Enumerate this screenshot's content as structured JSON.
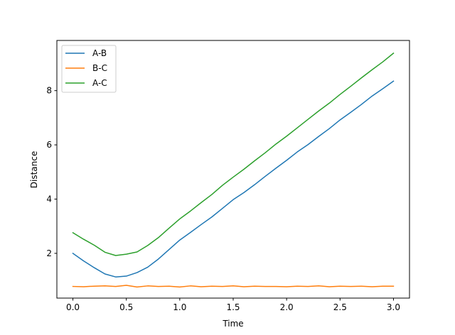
{
  "chart_data": {
    "type": "line",
    "title": "",
    "xlabel": "Time",
    "ylabel": "Distance",
    "xlim": [
      -0.15,
      3.15
    ],
    "ylim": [
      0.35,
      9.85
    ],
    "xticks": [
      0.0,
      0.5,
      1.0,
      1.5,
      2.0,
      2.5,
      3.0
    ],
    "xtick_labels": [
      "0.0",
      "0.5",
      "1.0",
      "1.5",
      "2.0",
      "2.5",
      "3.0"
    ],
    "yticks": [
      2,
      4,
      6,
      8
    ],
    "ytick_labels": [
      "2",
      "4",
      "6",
      "8"
    ],
    "grid": false,
    "legend": "upper-left",
    "colors": {
      "A-B": "#1f77b4",
      "B-C": "#ff7f0e",
      "A-C": "#2ca02c"
    },
    "x": [
      0.0,
      0.1,
      0.2,
      0.3,
      0.4,
      0.5,
      0.6,
      0.7,
      0.8,
      0.9,
      1.0,
      1.1,
      1.2,
      1.3,
      1.4,
      1.5,
      1.6,
      1.7,
      1.8,
      1.9,
      2.0,
      2.1,
      2.2,
      2.3,
      2.4,
      2.5,
      2.6,
      2.7,
      2.8,
      2.9,
      3.0
    ],
    "series": [
      {
        "name": "A-B",
        "values": [
          2.0,
          1.72,
          1.47,
          1.24,
          1.13,
          1.16,
          1.29,
          1.49,
          1.79,
          2.14,
          2.49,
          2.77,
          3.06,
          3.34,
          3.66,
          3.98,
          4.24,
          4.53,
          4.84,
          5.14,
          5.43,
          5.74,
          6.01,
          6.31,
          6.6,
          6.92,
          7.2,
          7.49,
          7.8,
          8.07,
          8.35
        ]
      },
      {
        "name": "B-C",
        "values": [
          0.78,
          0.77,
          0.79,
          0.8,
          0.78,
          0.82,
          0.76,
          0.8,
          0.78,
          0.79,
          0.76,
          0.8,
          0.77,
          0.79,
          0.78,
          0.8,
          0.77,
          0.79,
          0.78,
          0.78,
          0.77,
          0.79,
          0.78,
          0.8,
          0.77,
          0.79,
          0.78,
          0.79,
          0.77,
          0.79,
          0.79
        ]
      },
      {
        "name": "A-C",
        "values": [
          2.76,
          2.52,
          2.3,
          2.04,
          1.92,
          1.97,
          2.05,
          2.29,
          2.58,
          2.93,
          3.27,
          3.56,
          3.87,
          4.17,
          4.51,
          4.81,
          5.1,
          5.41,
          5.71,
          6.03,
          6.32,
          6.63,
          6.94,
          7.25,
          7.54,
          7.86,
          8.16,
          8.47,
          8.77,
          9.06,
          9.38
        ]
      }
    ]
  }
}
